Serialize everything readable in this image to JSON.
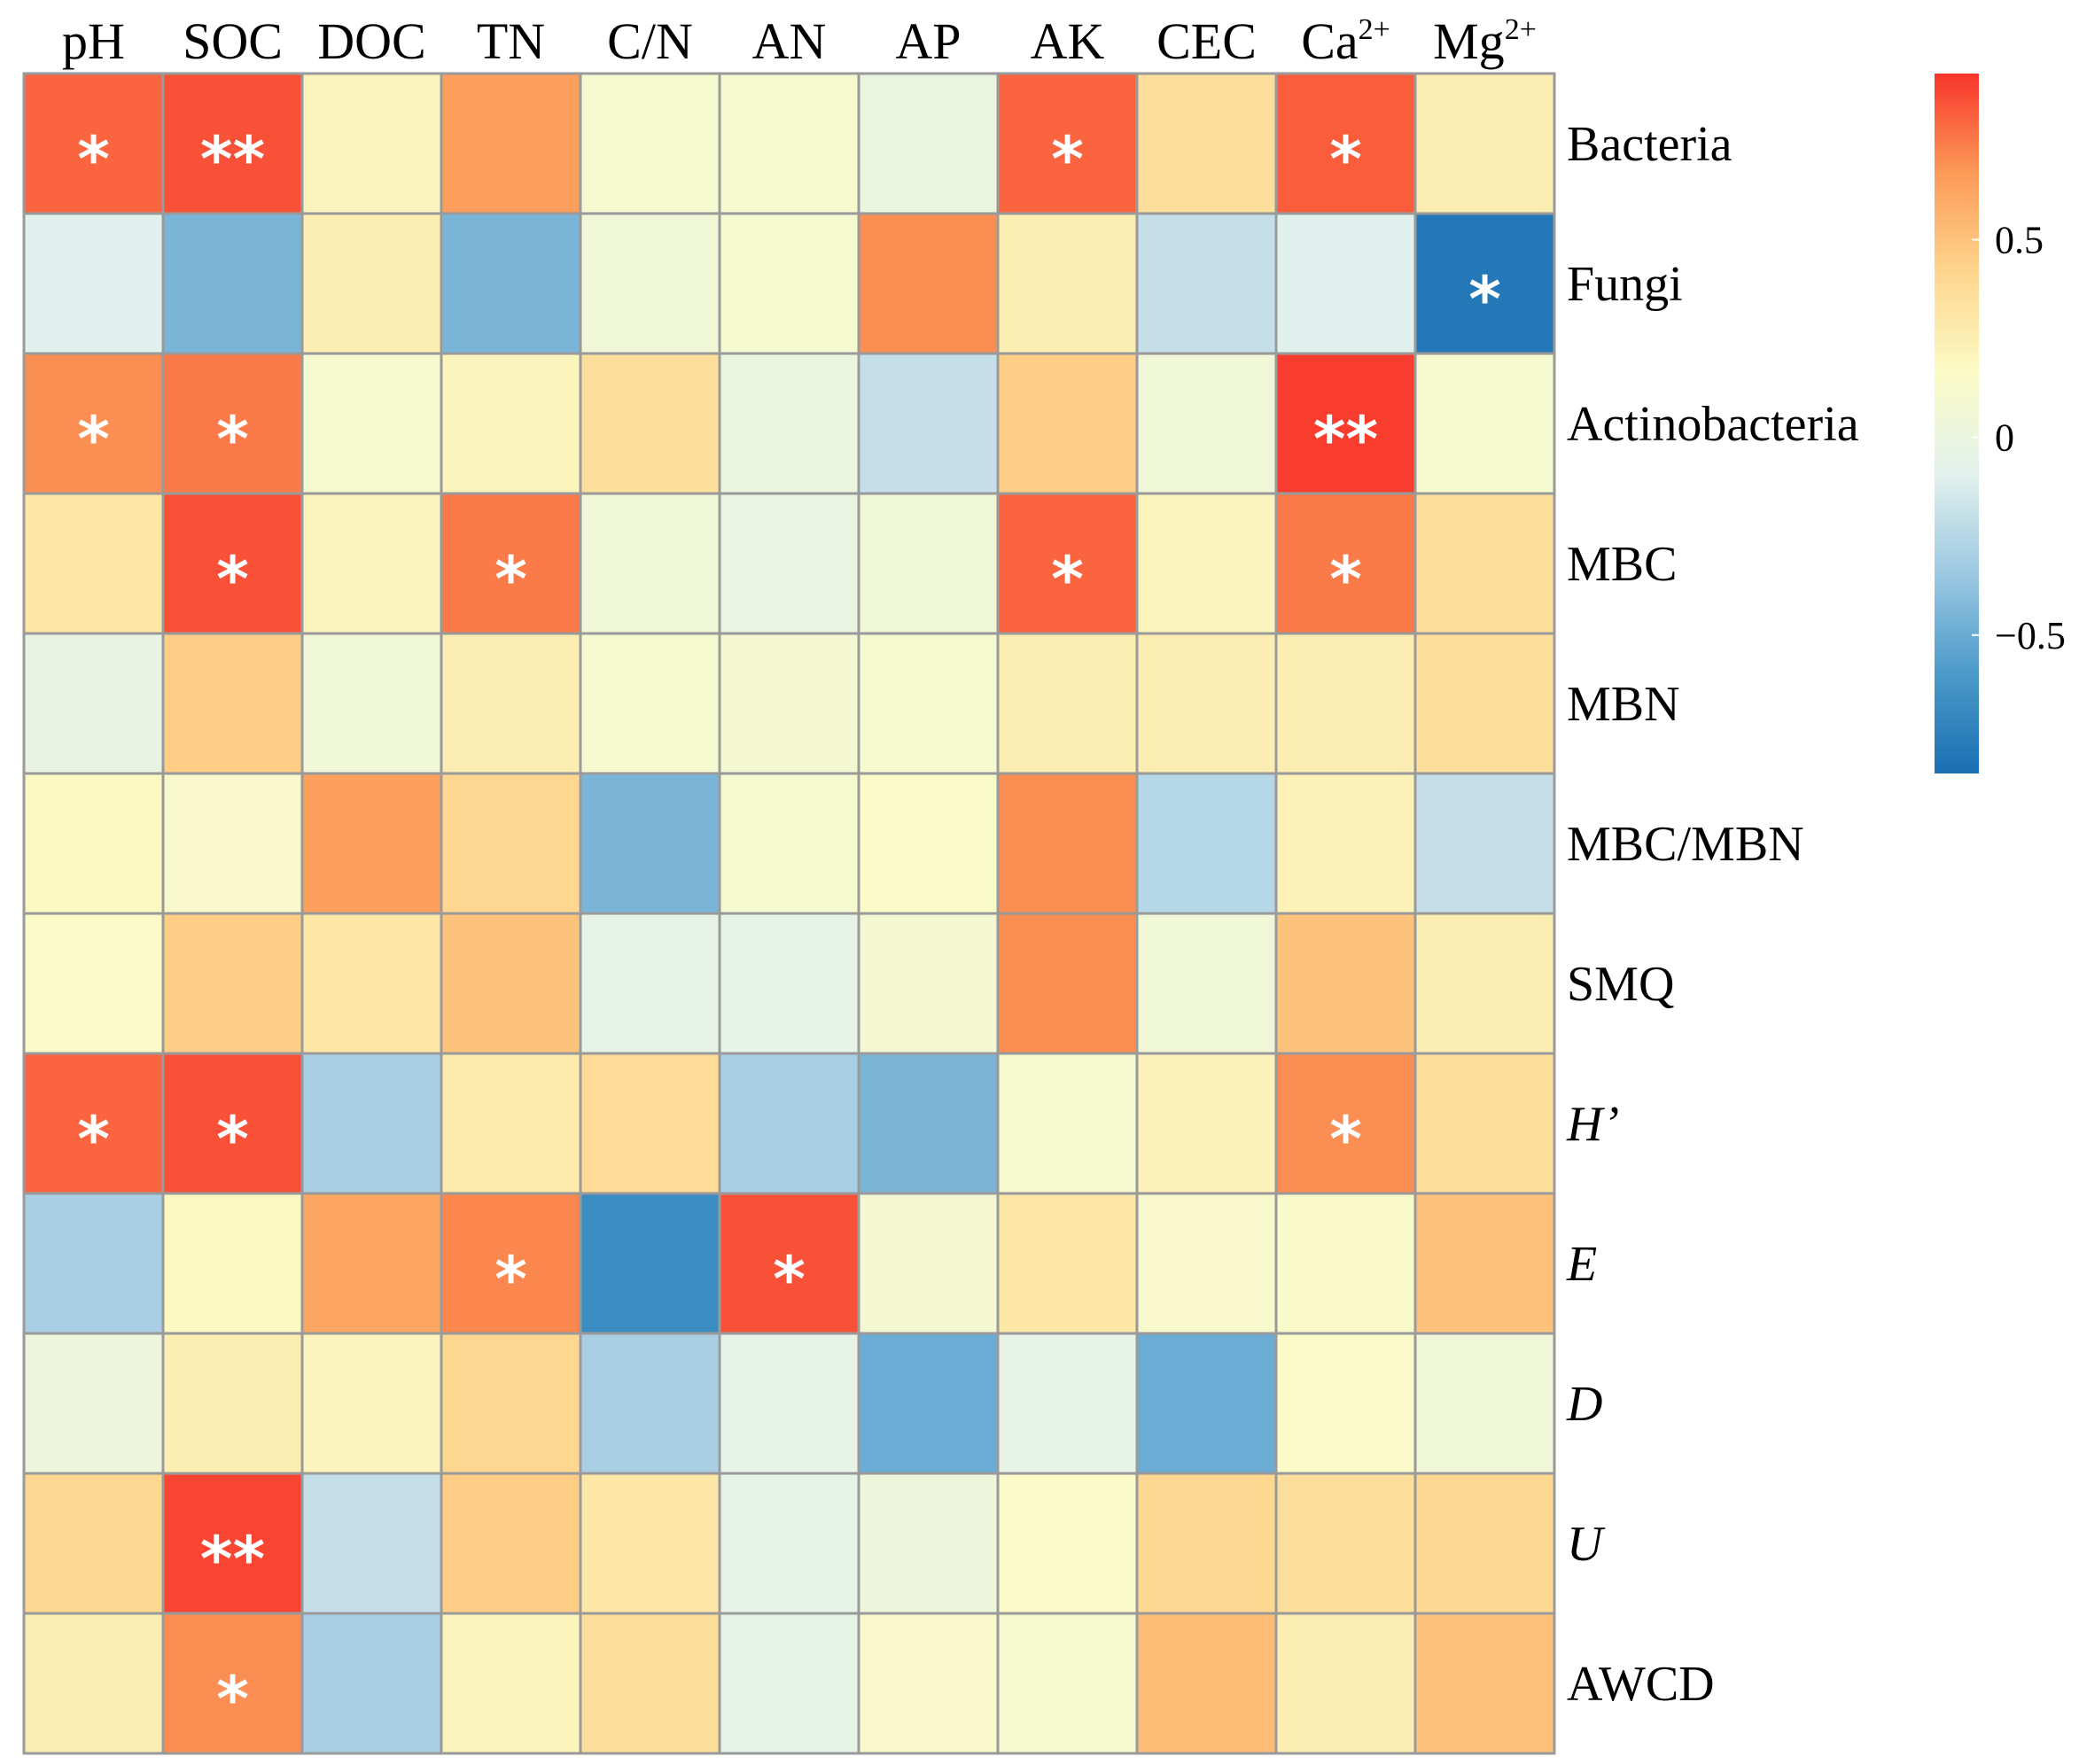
{
  "chart_data": {
    "type": "heatmap",
    "title": "",
    "columns": [
      "pH",
      "SOC",
      "DOC",
      "TN",
      "C/N",
      "AN",
      "AP",
      "AK",
      "CEC",
      "Ca2+",
      "Mg2+"
    ],
    "column_display": [
      {
        "base": "pH",
        "sup": ""
      },
      {
        "base": "SOC",
        "sup": ""
      },
      {
        "base": "DOC",
        "sup": ""
      },
      {
        "base": "TN",
        "sup": ""
      },
      {
        "base": "C/N",
        "sup": ""
      },
      {
        "base": "AN",
        "sup": ""
      },
      {
        "base": "AP",
        "sup": ""
      },
      {
        "base": "AK",
        "sup": ""
      },
      {
        "base": "CEC",
        "sup": ""
      },
      {
        "base": "Ca",
        "sup": "2+"
      },
      {
        "base": "Mg",
        "sup": "2+"
      }
    ],
    "rows": [
      "Bacteria",
      "Fungi",
      "Actinobacteria",
      "MBC",
      "MBN",
      "MBC/MBN",
      "SMQ",
      "H’",
      "E",
      "D",
      "U",
      "AWCD"
    ],
    "row_italic": [
      false,
      false,
      false,
      false,
      false,
      false,
      false,
      true,
      true,
      true,
      true,
      false
    ],
    "values": [
      [
        0.8,
        0.85,
        0.2,
        0.65,
        0.1,
        0.1,
        0.0,
        0.8,
        0.35,
        0.82,
        0.25
      ],
      [
        -0.1,
        -0.45,
        0.25,
        -0.45,
        0.05,
        0.1,
        0.7,
        0.25,
        -0.2,
        -0.1,
        -0.8
      ],
      [
        0.7,
        0.75,
        0.1,
        0.2,
        0.35,
        0.0,
        -0.2,
        0.45,
        0.05,
        0.9,
        0.1
      ],
      [
        0.3,
        0.85,
        0.2,
        0.75,
        0.05,
        -0.02,
        0.05,
        0.8,
        0.2,
        0.75,
        0.35
      ],
      [
        -0.03,
        0.45,
        0.05,
        0.25,
        0.1,
        0.08,
        0.1,
        0.25,
        0.25,
        0.25,
        0.35
      ],
      [
        0.18,
        0.12,
        0.65,
        0.4,
        -0.45,
        0.1,
        0.15,
        0.7,
        -0.25,
        0.22,
        -0.2
      ],
      [
        0.15,
        0.45,
        0.3,
        0.5,
        -0.05,
        -0.05,
        0.08,
        0.7,
        0.05,
        0.5,
        0.25
      ],
      [
        0.8,
        0.85,
        -0.3,
        0.28,
        0.38,
        -0.3,
        -0.45,
        0.1,
        0.22,
        0.7,
        0.35
      ],
      [
        -0.3,
        0.18,
        0.62,
        0.72,
        -0.68,
        0.85,
        0.08,
        0.3,
        0.12,
        0.14,
        0.5
      ],
      [
        0.02,
        0.25,
        0.2,
        0.4,
        -0.3,
        -0.05,
        -0.5,
        -0.05,
        -0.5,
        0.15,
        0.05
      ],
      [
        0.4,
        0.88,
        -0.2,
        0.45,
        0.3,
        -0.05,
        0.02,
        0.15,
        0.4,
        0.35,
        0.4
      ],
      [
        0.25,
        0.7,
        -0.3,
        0.2,
        0.35,
        -0.05,
        0.12,
        0.1,
        0.52,
        0.25,
        0.5
      ]
    ],
    "significance": [
      [
        "*",
        "**",
        "",
        "",
        "",
        "",
        "",
        "*",
        "",
        "*",
        ""
      ],
      [
        "",
        "",
        "",
        "",
        "",
        "",
        "",
        "",
        "",
        "",
        "*"
      ],
      [
        "*",
        "*",
        "",
        "",
        "",
        "",
        "",
        "",
        "",
        "**",
        ""
      ],
      [
        "",
        "*",
        "",
        "*",
        "",
        "",
        "",
        "*",
        "",
        "*",
        ""
      ],
      [
        "",
        "",
        "",
        "",
        "",
        "",
        "",
        "",
        "",
        "",
        ""
      ],
      [
        "",
        "",
        "",
        "",
        "",
        "",
        "",
        "",
        "",
        "",
        ""
      ],
      [
        "",
        "",
        "",
        "",
        "",
        "",
        "",
        "",
        "",
        "",
        ""
      ],
      [
        "*",
        "*",
        "",
        "",
        "",
        "",
        "",
        "",
        "",
        "*",
        ""
      ],
      [
        "",
        "",
        "",
        "*",
        "",
        "*",
        "",
        "",
        "",
        "",
        ""
      ],
      [
        "",
        "",
        "",
        "",
        "",
        "",
        "",
        "",
        "",
        "",
        ""
      ],
      [
        "",
        "**",
        "",
        "",
        "",
        "",
        "",
        "",
        "",
        "",
        ""
      ],
      [
        "",
        "*",
        "",
        "",
        "",
        "",
        "",
        "",
        "",
        "",
        ""
      ]
    ],
    "colorbar": {
      "range": [
        -0.85,
        0.92
      ],
      "ticks": [
        0.5,
        0,
        -0.5
      ],
      "tick_labels": [
        "0.5",
        "0",
        "−0.5"
      ],
      "colors": [
        "#1b6fb3",
        "#4b9ac9",
        "#9cc8e2",
        "#e2f1ec",
        "#fbfbc6",
        "#fed68e",
        "#fc9b58",
        "#f8352a"
      ]
    }
  }
}
